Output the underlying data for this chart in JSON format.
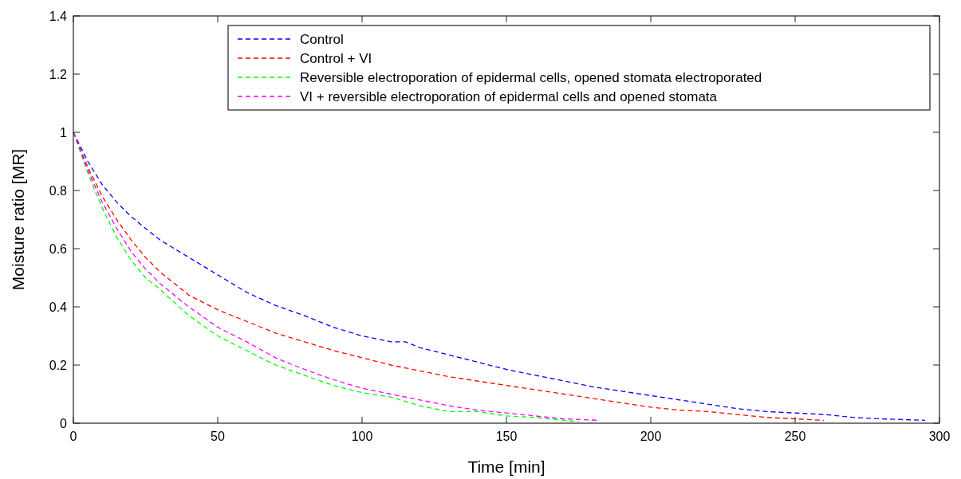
{
  "chart_data": {
    "type": "line",
    "xlabel": "Time [min]",
    "ylabel": "Moisture ratio [MR]",
    "xlim": [
      0,
      300
    ],
    "ylim": [
      0,
      1.4
    ],
    "xticks": [
      0,
      50,
      100,
      150,
      200,
      250,
      300
    ],
    "yticks": [
      0,
      0.2,
      0.4,
      0.6,
      0.8,
      1,
      1.2,
      1.4
    ],
    "legend": "top right",
    "line_style": "dashed",
    "grid": false,
    "series": [
      {
        "name": "Control",
        "color": "#0000ff",
        "x": [
          0,
          5,
          10,
          15,
          20,
          25,
          30,
          40,
          50,
          60,
          70,
          80,
          90,
          100,
          110,
          115,
          120,
          130,
          140,
          150,
          160,
          170,
          180,
          190,
          200,
          210,
          220,
          230,
          240,
          250,
          260,
          270,
          280,
          295
        ],
        "values": [
          1,
          0.9,
          0.82,
          0.76,
          0.71,
          0.67,
          0.63,
          0.57,
          0.51,
          0.45,
          0.405,
          0.37,
          0.33,
          0.3,
          0.28,
          0.28,
          0.26,
          0.235,
          0.21,
          0.185,
          0.165,
          0.145,
          0.125,
          0.11,
          0.095,
          0.08,
          0.065,
          0.05,
          0.04,
          0.035,
          0.03,
          0.02,
          0.015,
          0.01
        ]
      },
      {
        "name": "Control + VI",
        "color": "#ff0000",
        "x": [
          0,
          5,
          10,
          15,
          20,
          25,
          30,
          40,
          50,
          60,
          70,
          80,
          90,
          100,
          110,
          120,
          130,
          140,
          150,
          160,
          170,
          180,
          190,
          200,
          210,
          220,
          230,
          240,
          250,
          260
        ],
        "values": [
          1,
          0.88,
          0.78,
          0.7,
          0.63,
          0.57,
          0.52,
          0.44,
          0.39,
          0.35,
          0.31,
          0.28,
          0.25,
          0.225,
          0.2,
          0.18,
          0.16,
          0.145,
          0.13,
          0.115,
          0.1,
          0.085,
          0.07,
          0.055,
          0.045,
          0.04,
          0.03,
          0.02,
          0.015,
          0.01
        ]
      },
      {
        "name": "Reversible electroporation of epidermal cells, opened stomata electroporated",
        "color": "#00ff00",
        "x": [
          0,
          5,
          10,
          15,
          20,
          25,
          30,
          40,
          50,
          60,
          70,
          80,
          90,
          100,
          110,
          115,
          120,
          130,
          140,
          150,
          160,
          170,
          175
        ],
        "values": [
          1,
          0.86,
          0.74,
          0.64,
          0.56,
          0.5,
          0.46,
          0.37,
          0.3,
          0.25,
          0.2,
          0.165,
          0.13,
          0.105,
          0.09,
          0.075,
          0.06,
          0.04,
          0.04,
          0.025,
          0.02,
          0.01,
          0.005
        ]
      },
      {
        "name": "VI + reversible electroporation of epidermal cells and opened stomata",
        "color": "#ff00ff",
        "x": [
          0,
          5,
          10,
          15,
          20,
          25,
          30,
          40,
          50,
          60,
          70,
          80,
          90,
          100,
          110,
          120,
          130,
          140,
          150,
          160,
          170,
          182
        ],
        "values": [
          1,
          0.87,
          0.76,
          0.67,
          0.59,
          0.53,
          0.48,
          0.4,
          0.33,
          0.28,
          0.225,
          0.185,
          0.15,
          0.12,
          0.1,
          0.08,
          0.06,
          0.045,
          0.035,
          0.025,
          0.015,
          0.01
        ]
      }
    ]
  }
}
